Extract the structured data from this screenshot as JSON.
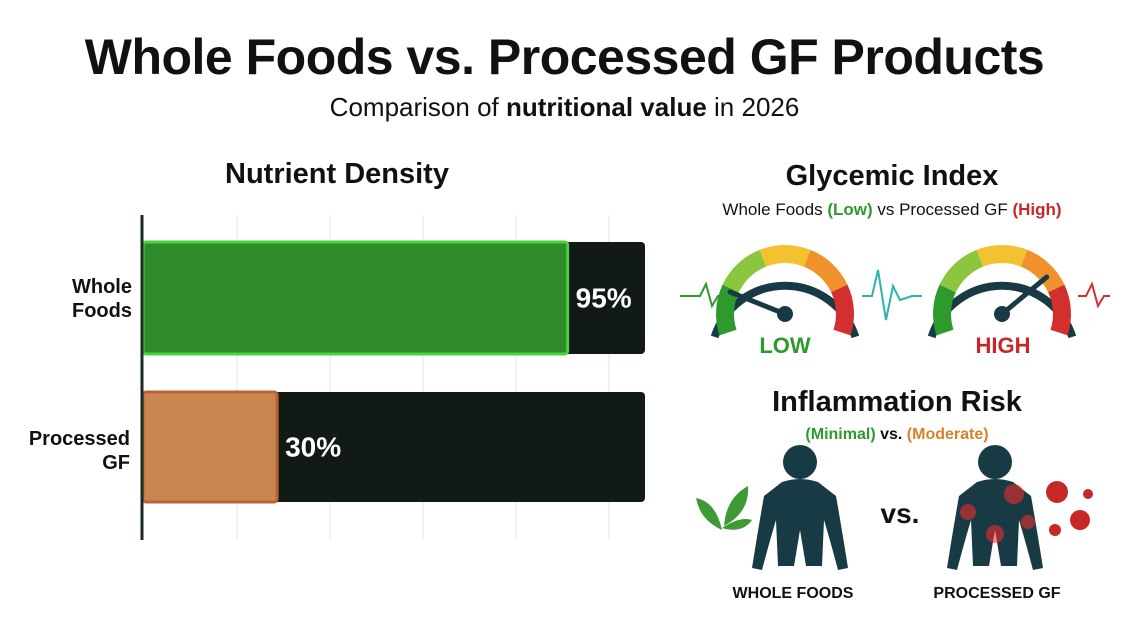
{
  "header": {
    "title": "Whole Foods vs. Processed GF Products",
    "subtitle": [
      "Comparison of ",
      "nutritional value",
      " in 2026"
    ]
  },
  "chart_data": {
    "type": "bar",
    "orientation": "horizontal",
    "title": "Nutrient Density",
    "categories": [
      "Whole Foods",
      "Processed GF"
    ],
    "values": [
      95,
      30
    ],
    "value_labels": [
      "95%",
      "30%"
    ],
    "xlim": [
      0,
      100
    ],
    "colors": [
      "#2f8a2a",
      "#c9874f"
    ],
    "border_colors": [
      "#4cd13f",
      "#b8643a"
    ]
  },
  "glycemic_index": {
    "title": "Glycemic Index",
    "subtitle": [
      "Whole Foods ",
      "(Low)",
      " vs Processed GF ",
      "(High)"
    ],
    "gauges": [
      "LOW",
      "HIGH"
    ]
  },
  "inflammation_risk": {
    "title": "Inflammation Risk",
    "subtitle": [
      "(Minimal)",
      " vs. ",
      "(Moderate)"
    ],
    "versus": "vs.",
    "labels": [
      "WHOLE FOODS",
      "PROCESSED GF"
    ]
  }
}
